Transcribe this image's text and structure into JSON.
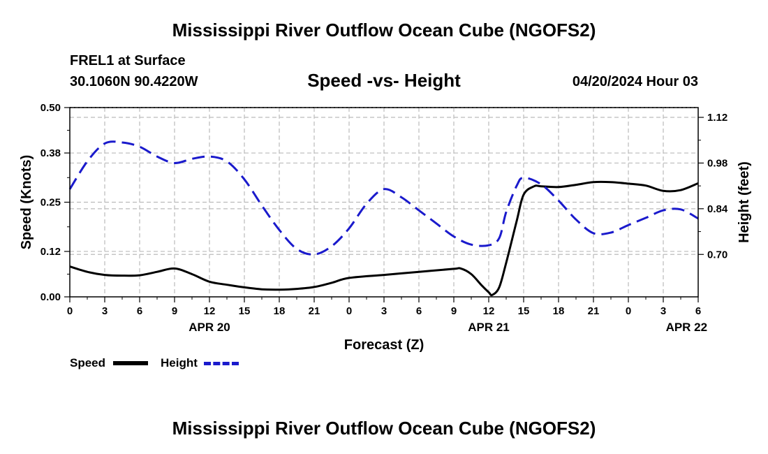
{
  "header": {
    "title": "Mississippi River Outflow Ocean Cube (NGOFS2)",
    "station": "FREL1 at Surface",
    "coordinates": "30.1060N  90.4220W",
    "subtitle": "Speed -vs- Height",
    "datetime": "04/20/2024 Hour 03"
  },
  "footer": {
    "title": "Mississippi River Outflow Ocean Cube (NGOFS2)"
  },
  "legend": {
    "speed_label": "Speed",
    "height_label": "Height",
    "speed_color": "#000000",
    "height_color": "#1a1acc"
  },
  "chart_data": {
    "type": "line",
    "title": "Speed -vs- Height",
    "xlabel": "Forecast (Z)",
    "ylabel": "Speed (Knots)",
    "y2label": "Height (feet)",
    "xlim": [
      0,
      54
    ],
    "ylim": [
      0,
      0.5
    ],
    "y2lim": [
      0.57,
      1.15
    ],
    "x_ticks": [
      0,
      3,
      6,
      9,
      12,
      15,
      18,
      21,
      24,
      27,
      30,
      33,
      36,
      39,
      42,
      45,
      48,
      51,
      54
    ],
    "x_tick_labels": [
      "0",
      "3",
      "6",
      "9",
      "12",
      "15",
      "18",
      "21",
      "0",
      "3",
      "6",
      "9",
      "12",
      "15",
      "18",
      "21",
      "0",
      "3",
      "6"
    ],
    "date_labels": [
      {
        "x": 12,
        "label": "APR 20"
      },
      {
        "x": 36,
        "label": "APR 21"
      },
      {
        "x": 53,
        "label": "APR 22"
      }
    ],
    "y_ticks": [
      0.0,
      0.12,
      0.25,
      0.38,
      0.5
    ],
    "y_tick_labels": [
      "0.00",
      "0.12",
      "0.25",
      "0.38",
      "0.50"
    ],
    "y2_ticks": [
      0.7,
      0.84,
      0.98,
      1.12
    ],
    "y2_tick_labels": [
      "0.70",
      "0.84",
      "0.98",
      "1.12"
    ],
    "grid": true,
    "legend_position": "bottom-left",
    "series": [
      {
        "name": "Speed",
        "axis": "left",
        "style": "solid",
        "color": "#000000",
        "x": [
          0,
          1.5,
          3,
          4.5,
          6,
          7.5,
          9,
          10.5,
          12,
          13.5,
          15,
          16.5,
          18,
          19.5,
          21,
          22.5,
          24,
          27,
          30,
          33,
          33.6,
          34.5,
          35.4,
          36,
          36.3,
          36.9,
          37.5,
          38.4,
          39,
          39.9,
          40.5,
          42,
          43.5,
          45,
          46.5,
          48,
          49.5,
          51,
          52.5,
          54
        ],
        "y": [
          0.08,
          0.066,
          0.058,
          0.056,
          0.057,
          0.066,
          0.075,
          0.06,
          0.04,
          0.032,
          0.025,
          0.02,
          0.019,
          0.021,
          0.026,
          0.037,
          0.05,
          0.058,
          0.066,
          0.074,
          0.075,
          0.06,
          0.03,
          0.012,
          0.005,
          0.025,
          0.09,
          0.2,
          0.27,
          0.292,
          0.292,
          0.29,
          0.296,
          0.303,
          0.303,
          0.299,
          0.294,
          0.28,
          0.282,
          0.3
        ]
      },
      {
        "name": "Height",
        "axis": "right",
        "style": "dashed",
        "color": "#1a1acc",
        "x": [
          0,
          1.5,
          3,
          4.5,
          6,
          7.5,
          9,
          10.5,
          12,
          13.5,
          15,
          16.5,
          18,
          19.5,
          21,
          22.5,
          24,
          25.5,
          27,
          28.5,
          30,
          31.5,
          33,
          34.5,
          36,
          36.9,
          37.5,
          38.4,
          39,
          40.5,
          42,
          43.5,
          45,
          46.5,
          48,
          49.5,
          51,
          52.5,
          54
        ],
        "y": [
          0.9,
          0.985,
          1.04,
          1.043,
          1.03,
          1.0,
          0.98,
          0.993,
          1.0,
          0.985,
          0.93,
          0.85,
          0.775,
          0.717,
          0.7,
          0.725,
          0.78,
          0.855,
          0.9,
          0.875,
          0.835,
          0.795,
          0.755,
          0.73,
          0.728,
          0.75,
          0.83,
          0.91,
          0.935,
          0.915,
          0.865,
          0.807,
          0.765,
          0.767,
          0.79,
          0.812,
          0.835,
          0.838,
          0.81
        ]
      }
    ]
  }
}
